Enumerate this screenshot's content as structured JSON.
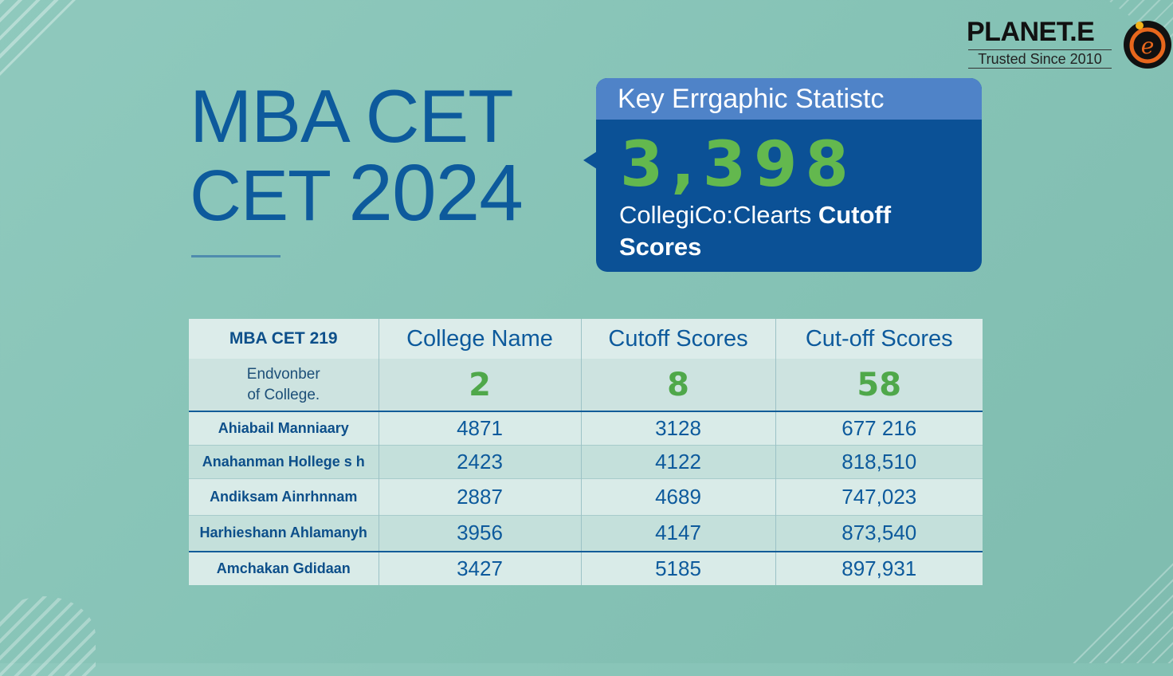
{
  "brand": {
    "name": "PLANET.E",
    "tagline": "Trusted Since 2010",
    "mark_letter": "e"
  },
  "title": {
    "line1": "MBA CET",
    "line2_word": "CET",
    "line2_year": "2024"
  },
  "stat_card": {
    "heading": "Key Errgaphic Statistc",
    "number": "3,398",
    "caption_regular": "CollegiCo:Clearts",
    "caption_bold": "Cutoff Scores"
  },
  "table": {
    "headers": [
      "MBA CET 219",
      "College Name",
      "Cutoff Scores",
      "Cut-off Scores"
    ],
    "summary": {
      "label_line1": "Endvonber",
      "label_line2": "of College.",
      "values": [
        "2",
        "8",
        "58"
      ]
    },
    "rows": [
      {
        "name": "Ahiabail Manniaary",
        "col2": "4871",
        "col3": "3128",
        "col4": "677 216"
      },
      {
        "name": "Anahanman Hollege s h",
        "col2": "2423",
        "col3": "4122",
        "col4": "818,510"
      },
      {
        "name": "Andiksam Ainrhnnam",
        "col2": "2887",
        "col3": "4689",
        "col4": "747,023"
      },
      {
        "name": "Harhieshann Ahlamanyh",
        "col2": "3956",
        "col3": "4147",
        "col4": "873,540"
      },
      {
        "name": "Amchakan Gdidaan",
        "col2": "3427",
        "col3": "5185",
        "col4": "897,931"
      }
    ]
  },
  "colors": {
    "background": "#86c3b6",
    "title_blue": "#0d5a9c",
    "card_blue": "#0b5196",
    "card_header": "#4f83c8",
    "accent_green": "#63b84e"
  }
}
